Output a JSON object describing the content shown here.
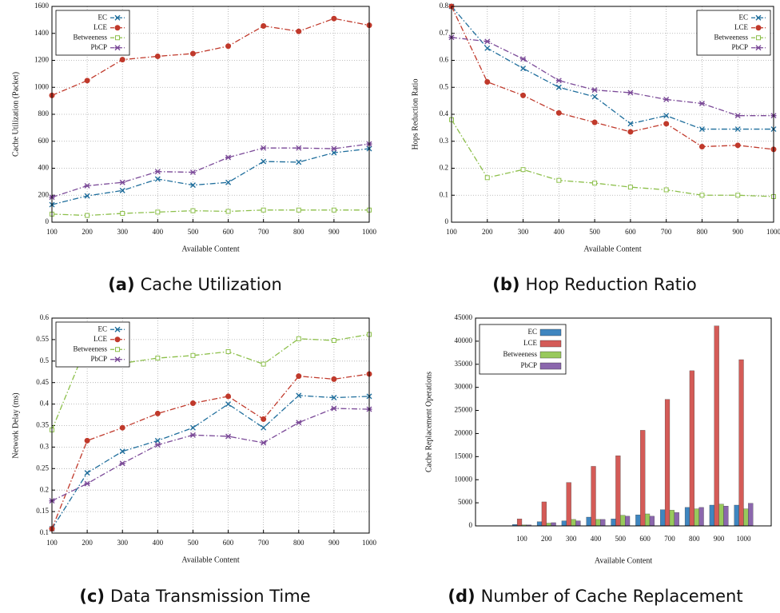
{
  "chart_data": [
    {
      "type": "line",
      "caption": {
        "label": "(a)",
        "text": "Cache Utilization"
      },
      "xlabel": "Available Content",
      "ylabel": "Cache Utilization (Packet)",
      "x": [
        100,
        200,
        300,
        400,
        500,
        600,
        700,
        800,
        900,
        1000
      ],
      "xlim": [
        100,
        1000
      ],
      "xticks": [
        100,
        200,
        300,
        400,
        500,
        600,
        700,
        800,
        900,
        1000
      ],
      "ylim": [
        0,
        1600
      ],
      "yticks": [
        0,
        200,
        400,
        600,
        800,
        1000,
        1200,
        1400,
        1600
      ],
      "grid": true,
      "legend": "upper left",
      "series": [
        {
          "name": "EC",
          "color": "#1f6e9c",
          "marker": "x",
          "values": [
            130,
            195,
            235,
            320,
            275,
            295,
            450,
            445,
            515,
            545
          ]
        },
        {
          "name": "LCE",
          "color": "#c0392b",
          "marker": "o",
          "values": [
            940,
            1050,
            1205,
            1230,
            1250,
            1305,
            1455,
            1415,
            1510,
            1460
          ]
        },
        {
          "name": "Betweeness",
          "color": "#8cbf4a",
          "marker": "s",
          "values": [
            60,
            50,
            65,
            75,
            85,
            80,
            90,
            90,
            90,
            90
          ]
        },
        {
          "name": "PbCP",
          "color": "#7b4a98",
          "marker": "*",
          "values": [
            185,
            270,
            295,
            375,
            370,
            480,
            550,
            550,
            545,
            580
          ]
        }
      ]
    },
    {
      "type": "line",
      "caption": {
        "label": "(b)",
        "text": "Hop Reduction Ratio"
      },
      "xlabel": "Available Content",
      "ylabel": "Hops Reduction Ratio",
      "x": [
        100,
        200,
        300,
        400,
        500,
        600,
        700,
        800,
        900,
        1000
      ],
      "xlim": [
        100,
        1000
      ],
      "xticks": [
        100,
        200,
        300,
        400,
        500,
        600,
        700,
        800,
        900,
        1000
      ],
      "ylim": [
        0,
        0.8
      ],
      "yticks": [
        0,
        0.1,
        0.2,
        0.3,
        0.4,
        0.5,
        0.6,
        0.7,
        0.8
      ],
      "grid": true,
      "legend": "upper right",
      "series": [
        {
          "name": "EC",
          "color": "#1f6e9c",
          "marker": "x",
          "values": [
            0.8,
            0.645,
            0.57,
            0.5,
            0.465,
            0.365,
            0.395,
            0.345,
            0.345,
            0.345
          ]
        },
        {
          "name": "LCE",
          "color": "#c0392b",
          "marker": "o",
          "values": [
            0.8,
            0.52,
            0.47,
            0.405,
            0.37,
            0.335,
            0.365,
            0.28,
            0.285,
            0.27
          ]
        },
        {
          "name": "Betweeness",
          "color": "#8cbf4a",
          "marker": "s",
          "values": [
            0.38,
            0.165,
            0.195,
            0.155,
            0.145,
            0.13,
            0.12,
            0.1,
            0.1,
            0.095
          ]
        },
        {
          "name": "PbCP",
          "color": "#7b4a98",
          "marker": "*",
          "values": [
            0.685,
            0.67,
            0.605,
            0.525,
            0.49,
            0.48,
            0.455,
            0.44,
            0.395,
            0.395
          ]
        }
      ]
    },
    {
      "type": "line",
      "caption": {
        "label": "(c)",
        "text": "Data Transmission Time"
      },
      "xlabel": "Available Content",
      "ylabel": "Network Delay (ms)",
      "x": [
        100,
        200,
        300,
        400,
        500,
        600,
        700,
        800,
        900,
        1000
      ],
      "xlim": [
        100,
        1000
      ],
      "xticks": [
        100,
        200,
        300,
        400,
        500,
        600,
        700,
        800,
        900,
        1000
      ],
      "ylim": [
        0.1,
        0.6
      ],
      "yticks": [
        0.1,
        0.15,
        0.2,
        0.25,
        0.3,
        0.35,
        0.4,
        0.45,
        0.5,
        0.55,
        0.6
      ],
      "grid": true,
      "legend": "upper left",
      "series": [
        {
          "name": "EC",
          "color": "#1f6e9c",
          "marker": "x",
          "values": [
            0.11,
            0.24,
            0.29,
            0.315,
            0.345,
            0.4,
            0.345,
            0.42,
            0.415,
            0.418
          ]
        },
        {
          "name": "LCE",
          "color": "#c0392b",
          "marker": "o",
          "values": [
            0.11,
            0.315,
            0.345,
            0.378,
            0.402,
            0.418,
            0.365,
            0.465,
            0.458,
            0.47
          ]
        },
        {
          "name": "Betweeness",
          "color": "#8cbf4a",
          "marker": "s",
          "values": [
            0.34,
            0.54,
            0.495,
            0.507,
            0.513,
            0.522,
            0.493,
            0.552,
            0.548,
            0.562
          ]
        },
        {
          "name": "PbCP",
          "color": "#7b4a98",
          "marker": "*",
          "values": [
            0.175,
            0.215,
            0.262,
            0.305,
            0.328,
            0.325,
            0.31,
            0.357,
            0.39,
            0.388
          ]
        }
      ]
    },
    {
      "type": "bar",
      "caption": {
        "label": "(d)",
        "text": "Number of Cache Replacement"
      },
      "xlabel": "Available Content",
      "ylabel": "Cache Replacement Operations",
      "categories": [
        100,
        200,
        300,
        400,
        500,
        600,
        700,
        800,
        900,
        1000
      ],
      "ylim": [
        0,
        45000
      ],
      "yticks": [
        0,
        5000,
        10000,
        15000,
        20000,
        25000,
        30000,
        35000,
        40000,
        45000
      ],
      "grid": false,
      "legend": "upper left",
      "series": [
        {
          "name": "EC",
          "color": "#3f86c0",
          "values": [
            300,
            900,
            1100,
            1900,
            1500,
            2400,
            3500,
            4000,
            4500,
            4500
          ]
        },
        {
          "name": "LCE",
          "color": "#d45b57",
          "values": [
            1500,
            5200,
            9400,
            12900,
            15200,
            20700,
            27400,
            33600,
            43300,
            36000
          ]
        },
        {
          "name": "Betweeness",
          "color": "#98c95c",
          "values": [
            200,
            600,
            1400,
            1400,
            2300,
            2600,
            3400,
            3700,
            4700,
            3700
          ]
        },
        {
          "name": "PbCP",
          "color": "#8b67ad",
          "values": [
            200,
            700,
            1100,
            1400,
            2100,
            2100,
            2900,
            4000,
            4300,
            4900
          ]
        }
      ]
    }
  ]
}
